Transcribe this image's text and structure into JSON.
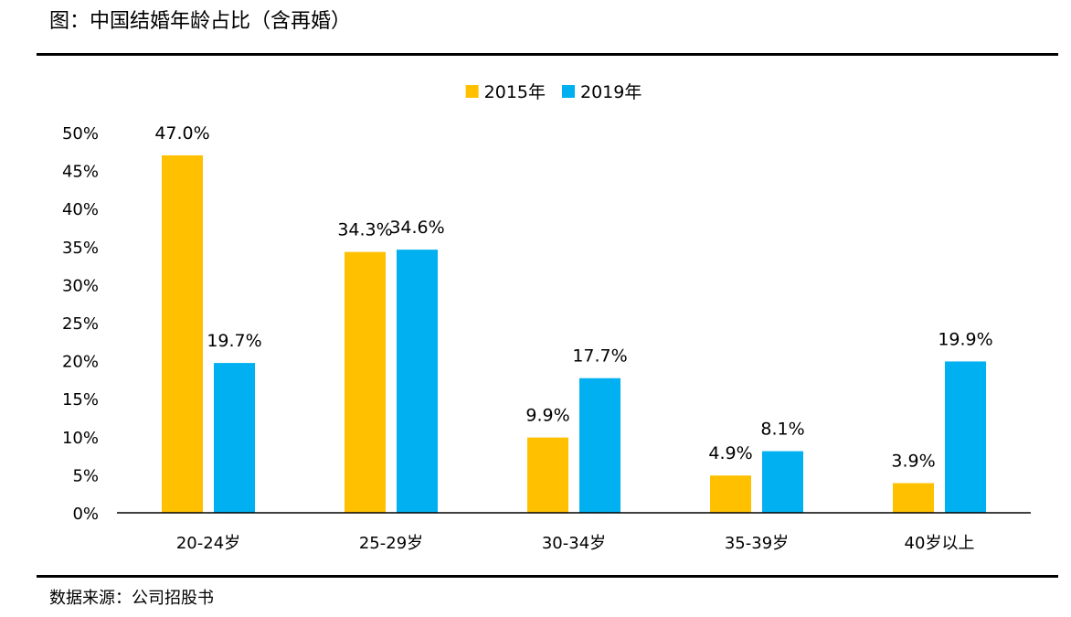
{
  "figure": {
    "title": "图：中国结婚年龄占比（含再婚）",
    "source": "数据来源：公司招股书"
  },
  "chart_data": {
    "type": "bar",
    "categories": [
      "20-24岁",
      "25-29岁",
      "30-34岁",
      "35-39岁",
      "40岁以上"
    ],
    "series": [
      {
        "name": "2015年",
        "color": "#FFC000",
        "values": [
          47.0,
          34.3,
          9.9,
          4.9,
          3.9
        ],
        "labels": [
          "47.0%",
          "34.3%",
          "9.9%",
          "4.9%",
          "3.9%"
        ]
      },
      {
        "name": "2019年",
        "color": "#00B0F0",
        "values": [
          19.7,
          34.6,
          17.7,
          8.1,
          19.9
        ],
        "labels": [
          "19.7%",
          "34.6%",
          "17.7%",
          "8.1%",
          "19.9%"
        ]
      }
    ],
    "yticks": [
      0,
      5,
      10,
      15,
      20,
      25,
      30,
      35,
      40,
      45,
      50
    ],
    "ytick_labels": [
      "0%",
      "5%",
      "10%",
      "15%",
      "20%",
      "25%",
      "30%",
      "35%",
      "40%",
      "45%",
      "50%"
    ],
    "ylim": [
      0,
      50
    ],
    "xlabel": "",
    "ylabel": "",
    "grid": false,
    "legend_position": "top-center"
  }
}
